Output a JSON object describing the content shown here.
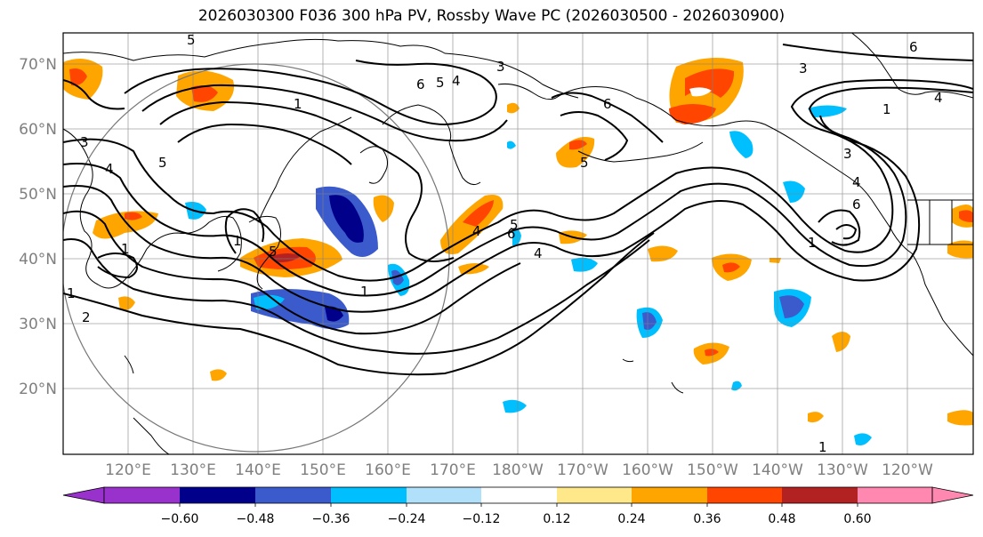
{
  "title": "2026030300 F036 300 hPa PV, Rossby Wave PC (2026030500 - 2026030900)",
  "lat_labels": [
    "70°N",
    "60°N",
    "50°N",
    "40°N",
    "30°N",
    "20°N"
  ],
  "lon_labels": [
    "120°E",
    "130°E",
    "140°E",
    "150°E",
    "160°E",
    "170°E",
    "180°W",
    "170°W",
    "160°W",
    "150°W",
    "140°W",
    "130°W",
    "120°W"
  ],
  "colorbar": {
    "ticks": [
      "−0.60",
      "−0.48",
      "−0.36",
      "−0.24",
      "−0.12",
      "0.12",
      "0.24",
      "0.36",
      "0.48",
      "0.60"
    ],
    "colors": [
      "#9932cc",
      "#00008b",
      "#3b5bcc",
      "#00bfff",
      "#b0e0fa",
      "#ffffff",
      "#ffe88a",
      "#ffa500",
      "#ff4500",
      "#b22222",
      "#ff88b0"
    ]
  },
  "contour_labels": [
    "5",
    "3",
    "1",
    "6",
    "5",
    "4",
    "3",
    "6",
    "3",
    "6",
    "4",
    "1",
    "3",
    "4",
    "5",
    "1",
    "5",
    "4",
    "6",
    "5",
    "2",
    "1",
    "1",
    "1",
    "4",
    "4",
    "5",
    "1",
    "6",
    "1"
  ]
}
